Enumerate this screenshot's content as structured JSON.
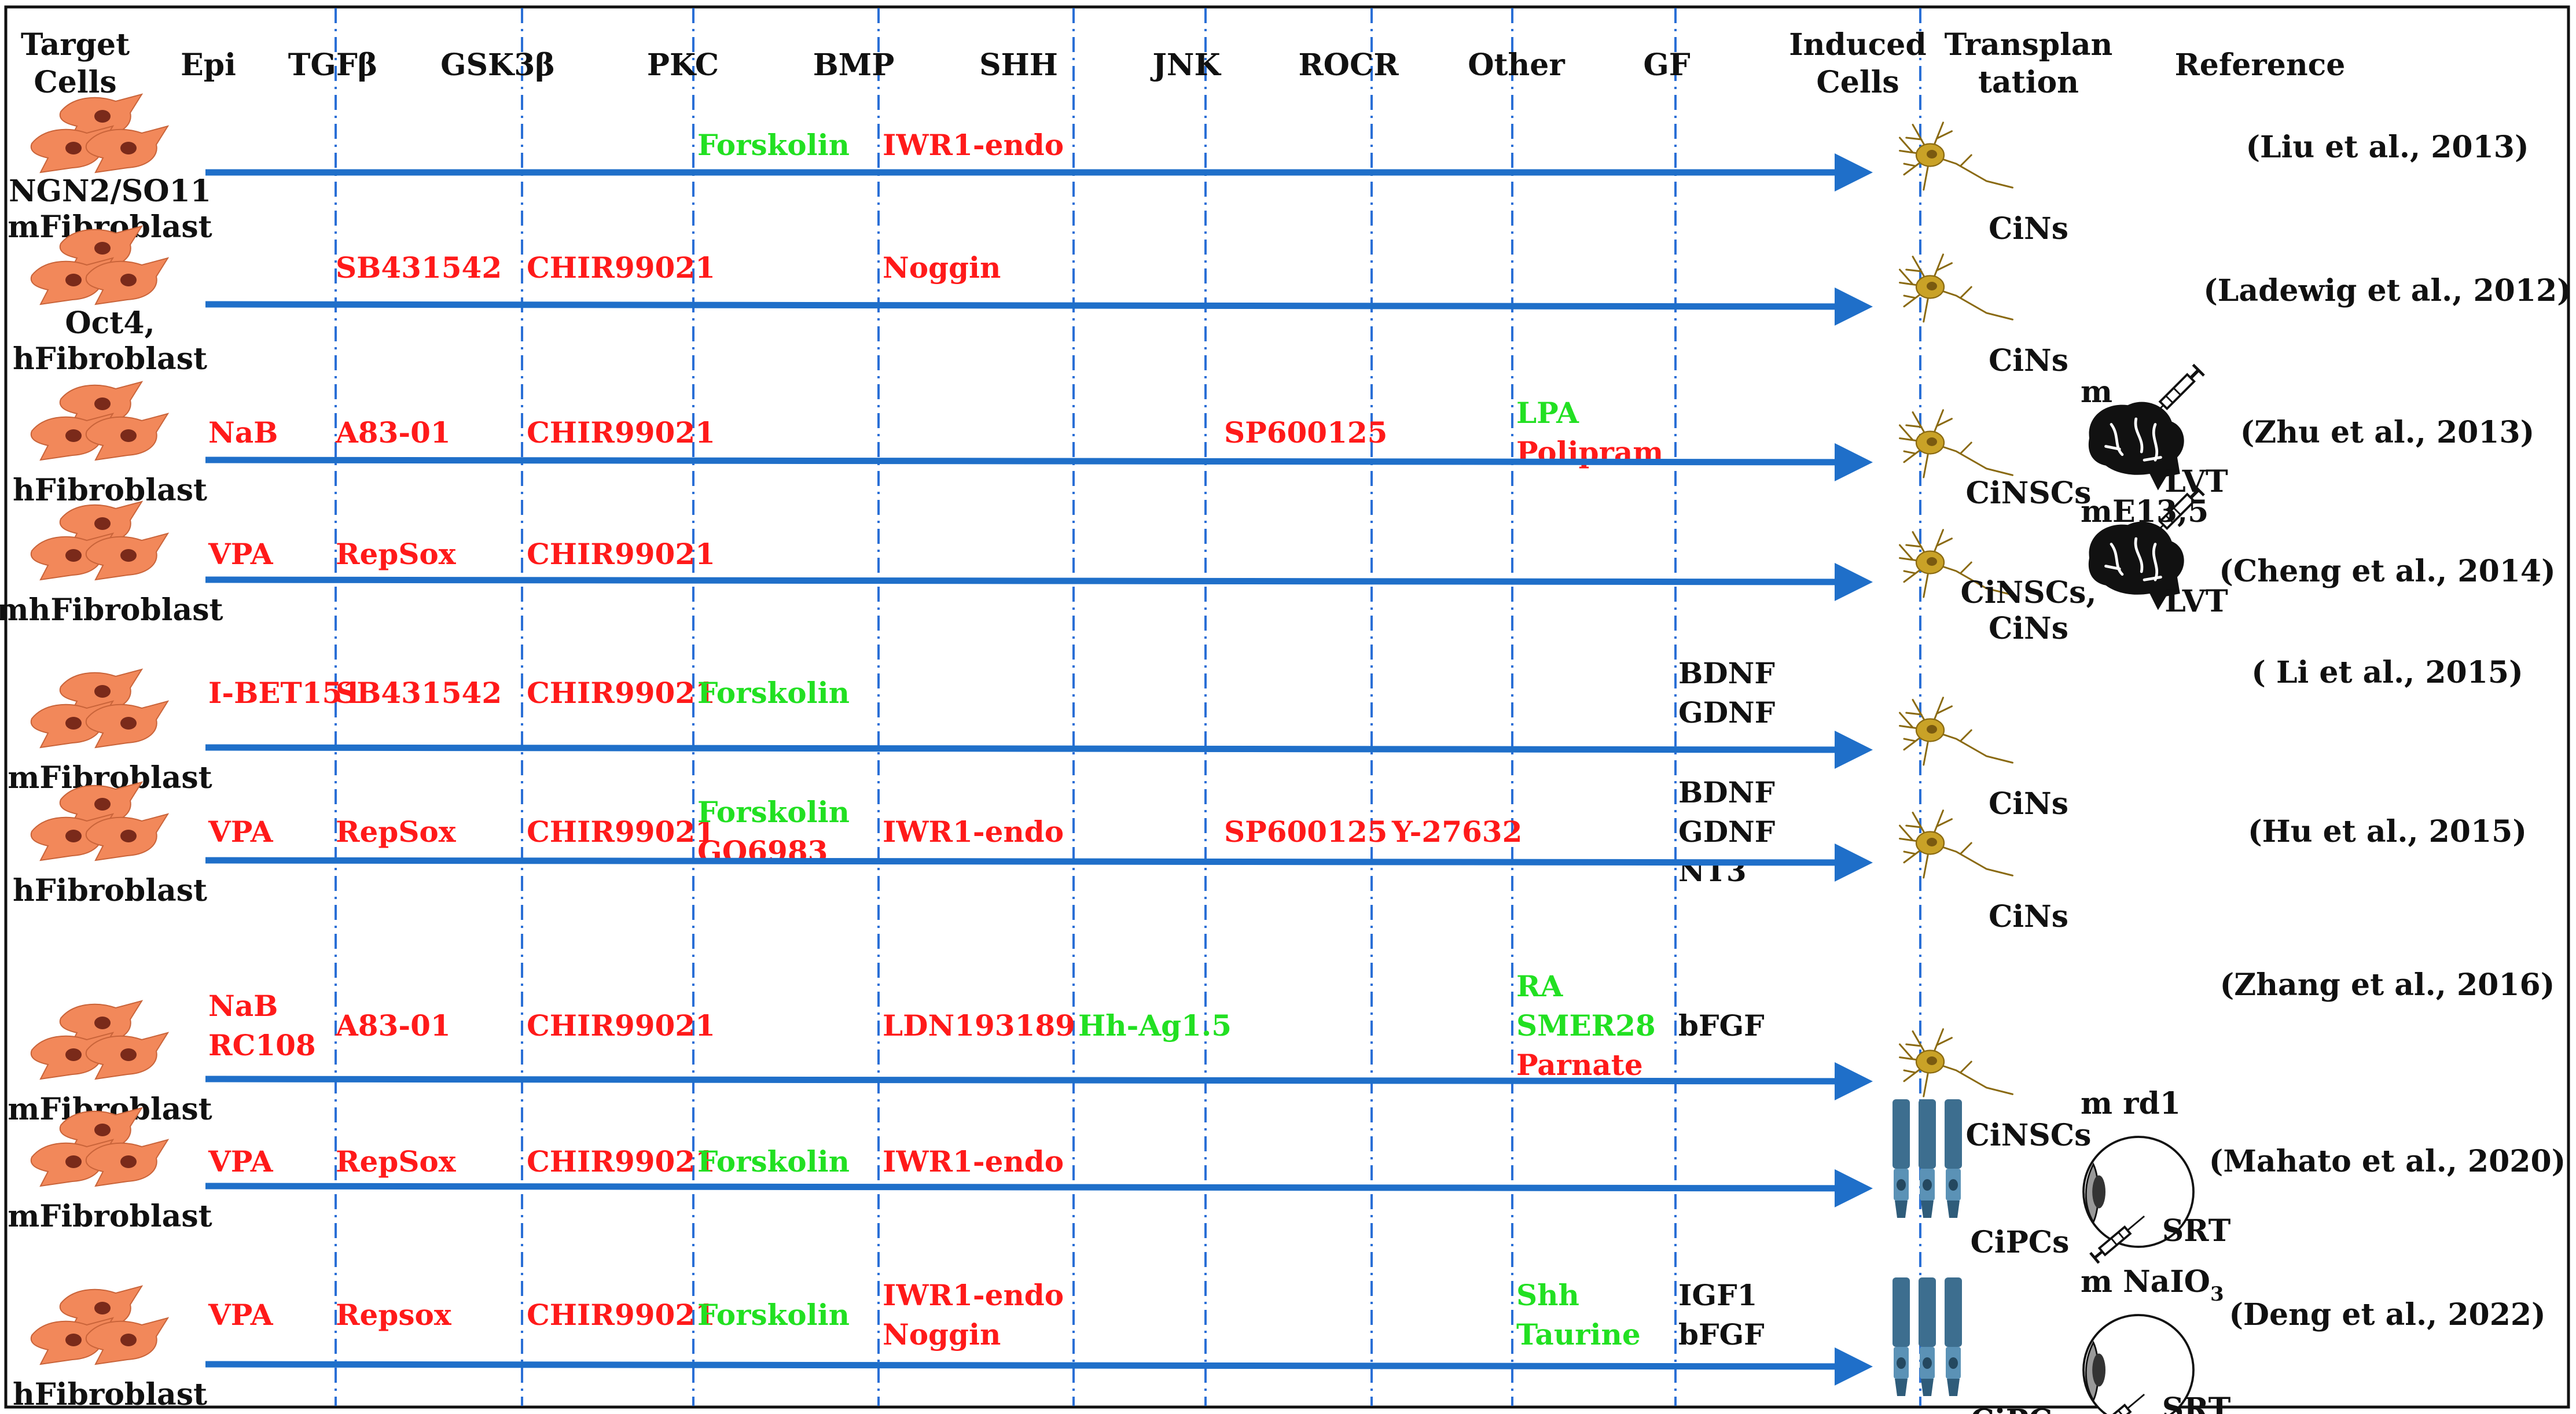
{
  "colors": {
    "inhibitor": "#ff1a1a",
    "activator": "#22e022",
    "neutral": "#111111",
    "arrow": "#1f6fc9",
    "divider": "#2a6fd6",
    "cell": "#f2885a",
    "nucleus": "#7a2a1a",
    "neuron": "#c9a227",
    "photoreceptor": "#3d6e8f"
  },
  "headers": [
    {
      "key": "target",
      "lines": [
        "Target",
        "Cells"
      ]
    },
    {
      "key": "epi",
      "lines": [
        "Epi"
      ]
    },
    {
      "key": "tgfb",
      "lines": [
        "TGFβ"
      ]
    },
    {
      "key": "gsk3b",
      "lines": [
        "GSK3β"
      ]
    },
    {
      "key": "pkc",
      "lines": [
        "PKC"
      ]
    },
    {
      "key": "bmp",
      "lines": [
        "BMP"
      ]
    },
    {
      "key": "shh",
      "lines": [
        "SHH"
      ]
    },
    {
      "key": "jnk",
      "lines": [
        "JNK"
      ]
    },
    {
      "key": "rocr",
      "lines": [
        "ROCR"
      ]
    },
    {
      "key": "other",
      "lines": [
        "Other"
      ]
    },
    {
      "key": "gf",
      "lines": [
        "GF"
      ]
    },
    {
      "key": "induced",
      "lines": [
        "Induced",
        "Cells"
      ]
    },
    {
      "key": "transplantation",
      "lines": [
        "Transplan",
        "tation"
      ]
    },
    {
      "key": "reference",
      "lines": [
        "Reference"
      ]
    }
  ],
  "rows": [
    {
      "target": [
        "NGN2/SO11",
        "mFibroblast"
      ],
      "cells": {
        "pkc": [
          {
            "t": "Forskolin",
            "c": "activator"
          }
        ],
        "bmp": [
          {
            "t": "IWR1-endo",
            "c": "inhibitor"
          }
        ]
      },
      "induced": {
        "icon": "neuron",
        "labels": [
          "CiNs"
        ]
      },
      "transplant": null,
      "reference": "(Liu et al., 2013)"
    },
    {
      "target": [
        "Oct4,",
        "hFibroblast"
      ],
      "cells": {
        "tgfb": [
          {
            "t": "SB431542",
            "c": "inhibitor"
          }
        ],
        "gsk3b": [
          {
            "t": "CHIR99021",
            "c": "inhibitor"
          }
        ],
        "bmp": [
          {
            "t": "Noggin",
            "c": "inhibitor"
          }
        ]
      },
      "induced": {
        "icon": "neuron",
        "labels": [
          "CiNs"
        ]
      },
      "transplant": null,
      "reference": "(Ladewig et al., 2012)"
    },
    {
      "target": [
        "hFibroblast"
      ],
      "cells": {
        "epi": [
          {
            "t": "NaB",
            "c": "inhibitor"
          }
        ],
        "tgfb": [
          {
            "t": "A83-01",
            "c": "inhibitor"
          }
        ],
        "gsk3b": [
          {
            "t": "CHIR99021",
            "c": "inhibitor"
          }
        ],
        "jnk": [
          {
            "t": "SP600125",
            "c": "inhibitor"
          }
        ],
        "other": [
          {
            "t": "LPA",
            "c": "activator"
          },
          {
            "t": "Polipram",
            "c": "inhibitor"
          }
        ]
      },
      "induced": {
        "icon": "neuron",
        "labels": [
          "CiNSCs"
        ]
      },
      "transplant": {
        "icon": "brain",
        "top": "m",
        "bottom": "LVT"
      },
      "reference": "(Zhu et al., 2013)"
    },
    {
      "target": [
        "mhFibroblast"
      ],
      "cells": {
        "epi": [
          {
            "t": "VPA",
            "c": "inhibitor"
          }
        ],
        "tgfb": [
          {
            "t": "RepSox",
            "c": "inhibitor"
          }
        ],
        "gsk3b": [
          {
            "t": "CHIR99021",
            "c": "inhibitor"
          }
        ]
      },
      "induced": {
        "icon": "neuron",
        "labels": [
          "CiNSCs,",
          "CiNs"
        ]
      },
      "transplant": {
        "icon": "brain",
        "top": "mE13,5",
        "bottom": "LVT"
      },
      "reference": "(Cheng et al., 2014)"
    },
    {
      "target": [
        "mFibroblast"
      ],
      "cells": {
        "epi": [
          {
            "t": "I-BET151",
            "c": "inhibitor"
          }
        ],
        "tgfb": [
          {
            "t": "SB431542",
            "c": "inhibitor"
          }
        ],
        "gsk3b": [
          {
            "t": "CHIR99021",
            "c": "inhibitor"
          }
        ],
        "pkc": [
          {
            "t": "Forskolin",
            "c": "activator"
          }
        ],
        "gf": [
          {
            "t": "BDNF",
            "c": "neutral"
          },
          {
            "t": "GDNF",
            "c": "neutral"
          }
        ]
      },
      "induced": {
        "icon": "neuron",
        "labels": [
          "CiNs"
        ]
      },
      "transplant": null,
      "reference": "( Li et al., 2015)"
    },
    {
      "target": [
        "hFibroblast"
      ],
      "cells": {
        "epi": [
          {
            "t": "VPA",
            "c": "inhibitor"
          }
        ],
        "tgfb": [
          {
            "t": "RepSox",
            "c": "inhibitor"
          }
        ],
        "gsk3b": [
          {
            "t": "CHIR99021",
            "c": "inhibitor"
          }
        ],
        "pkc": [
          {
            "t": "Forskolin",
            "c": "activator"
          },
          {
            "t": "GO6983",
            "c": "inhibitor"
          }
        ],
        "bmp": [
          {
            "t": "IWR1-endo",
            "c": "inhibitor"
          }
        ],
        "jnk": [
          {
            "t": "SP600125",
            "c": "inhibitor"
          }
        ],
        "rocr": [
          {
            "t": "Y-27632",
            "c": "inhibitor"
          }
        ],
        "gf": [
          {
            "t": "BDNF",
            "c": "neutral"
          },
          {
            "t": "GDNF",
            "c": "neutral"
          },
          {
            "t": "NT3",
            "c": "neutral"
          }
        ]
      },
      "induced": {
        "icon": "neuron",
        "labels": [
          "CiNs"
        ]
      },
      "transplant": null,
      "reference": "(Hu et al., 2015)"
    },
    {
      "target": [
        "mFibroblast"
      ],
      "cells": {
        "epi": [
          {
            "t": "NaB",
            "c": "inhibitor"
          },
          {
            "t": "RC108",
            "c": "inhibitor"
          }
        ],
        "tgfb": [
          {
            "t": "A83-01",
            "c": "inhibitor"
          }
        ],
        "gsk3b": [
          {
            "t": "CHIR99021",
            "c": "inhibitor"
          }
        ],
        "bmp": [
          {
            "t": "LDN193189",
            "c": "inhibitor"
          }
        ],
        "shh": [
          {
            "t": "Hh-Ag1.5",
            "c": "activator"
          }
        ],
        "other": [
          {
            "t": "RA",
            "c": "activator"
          },
          {
            "t": "SMER28",
            "c": "activator"
          },
          {
            "t": "Parnate",
            "c": "inhibitor"
          }
        ],
        "gf": [
          {
            "t": "bFGF",
            "c": "neutral"
          }
        ]
      },
      "induced": {
        "icon": "neuron",
        "labels": [
          "CiNSCs"
        ]
      },
      "transplant": null,
      "reference": "(Zhang et al., 2016)"
    },
    {
      "target": [
        "mFibroblast"
      ],
      "cells": {
        "epi": [
          {
            "t": "VPA",
            "c": "inhibitor"
          }
        ],
        "tgfb": [
          {
            "t": "RepSox",
            "c": "inhibitor"
          }
        ],
        "gsk3b": [
          {
            "t": "CHIR99021",
            "c": "inhibitor"
          }
        ],
        "pkc": [
          {
            "t": "Forskolin",
            "c": "activator"
          }
        ],
        "bmp": [
          {
            "t": "IWR1-endo",
            "c": "inhibitor"
          }
        ]
      },
      "induced": {
        "icon": "photoreceptor",
        "labels": [
          "CiPCs"
        ]
      },
      "transplant": {
        "icon": "eye",
        "top": "m rd1",
        "bottom": "SRT"
      },
      "reference": "(Mahato et al., 2020)"
    },
    {
      "target": [
        "hFibroblast"
      ],
      "cells": {
        "epi": [
          {
            "t": "VPA",
            "c": "inhibitor"
          }
        ],
        "tgfb": [
          {
            "t": "Repsox",
            "c": "inhibitor"
          }
        ],
        "gsk3b": [
          {
            "t": "CHIR99021",
            "c": "inhibitor"
          }
        ],
        "pkc": [
          {
            "t": "Forskolin",
            "c": "activator"
          }
        ],
        "bmp": [
          {
            "t": "IWR1-endo",
            "c": "inhibitor"
          },
          {
            "t": "Noggin",
            "c": "inhibitor"
          }
        ],
        "other": [
          {
            "t": "Shh",
            "c": "activator"
          },
          {
            "t": "Taurine",
            "c": "activator"
          }
        ],
        "gf": [
          {
            "t": "IGF1",
            "c": "neutral"
          },
          {
            "t": "bFGF",
            "c": "neutral"
          }
        ]
      },
      "induced": {
        "icon": "photoreceptor",
        "labels": [
          "CiPCs"
        ]
      },
      "transplant": {
        "icon": "eye",
        "top": "m NaIO",
        "top_sub": "3",
        "bottom": "SRT"
      },
      "reference": "(Deng et al., 2022)"
    }
  ]
}
